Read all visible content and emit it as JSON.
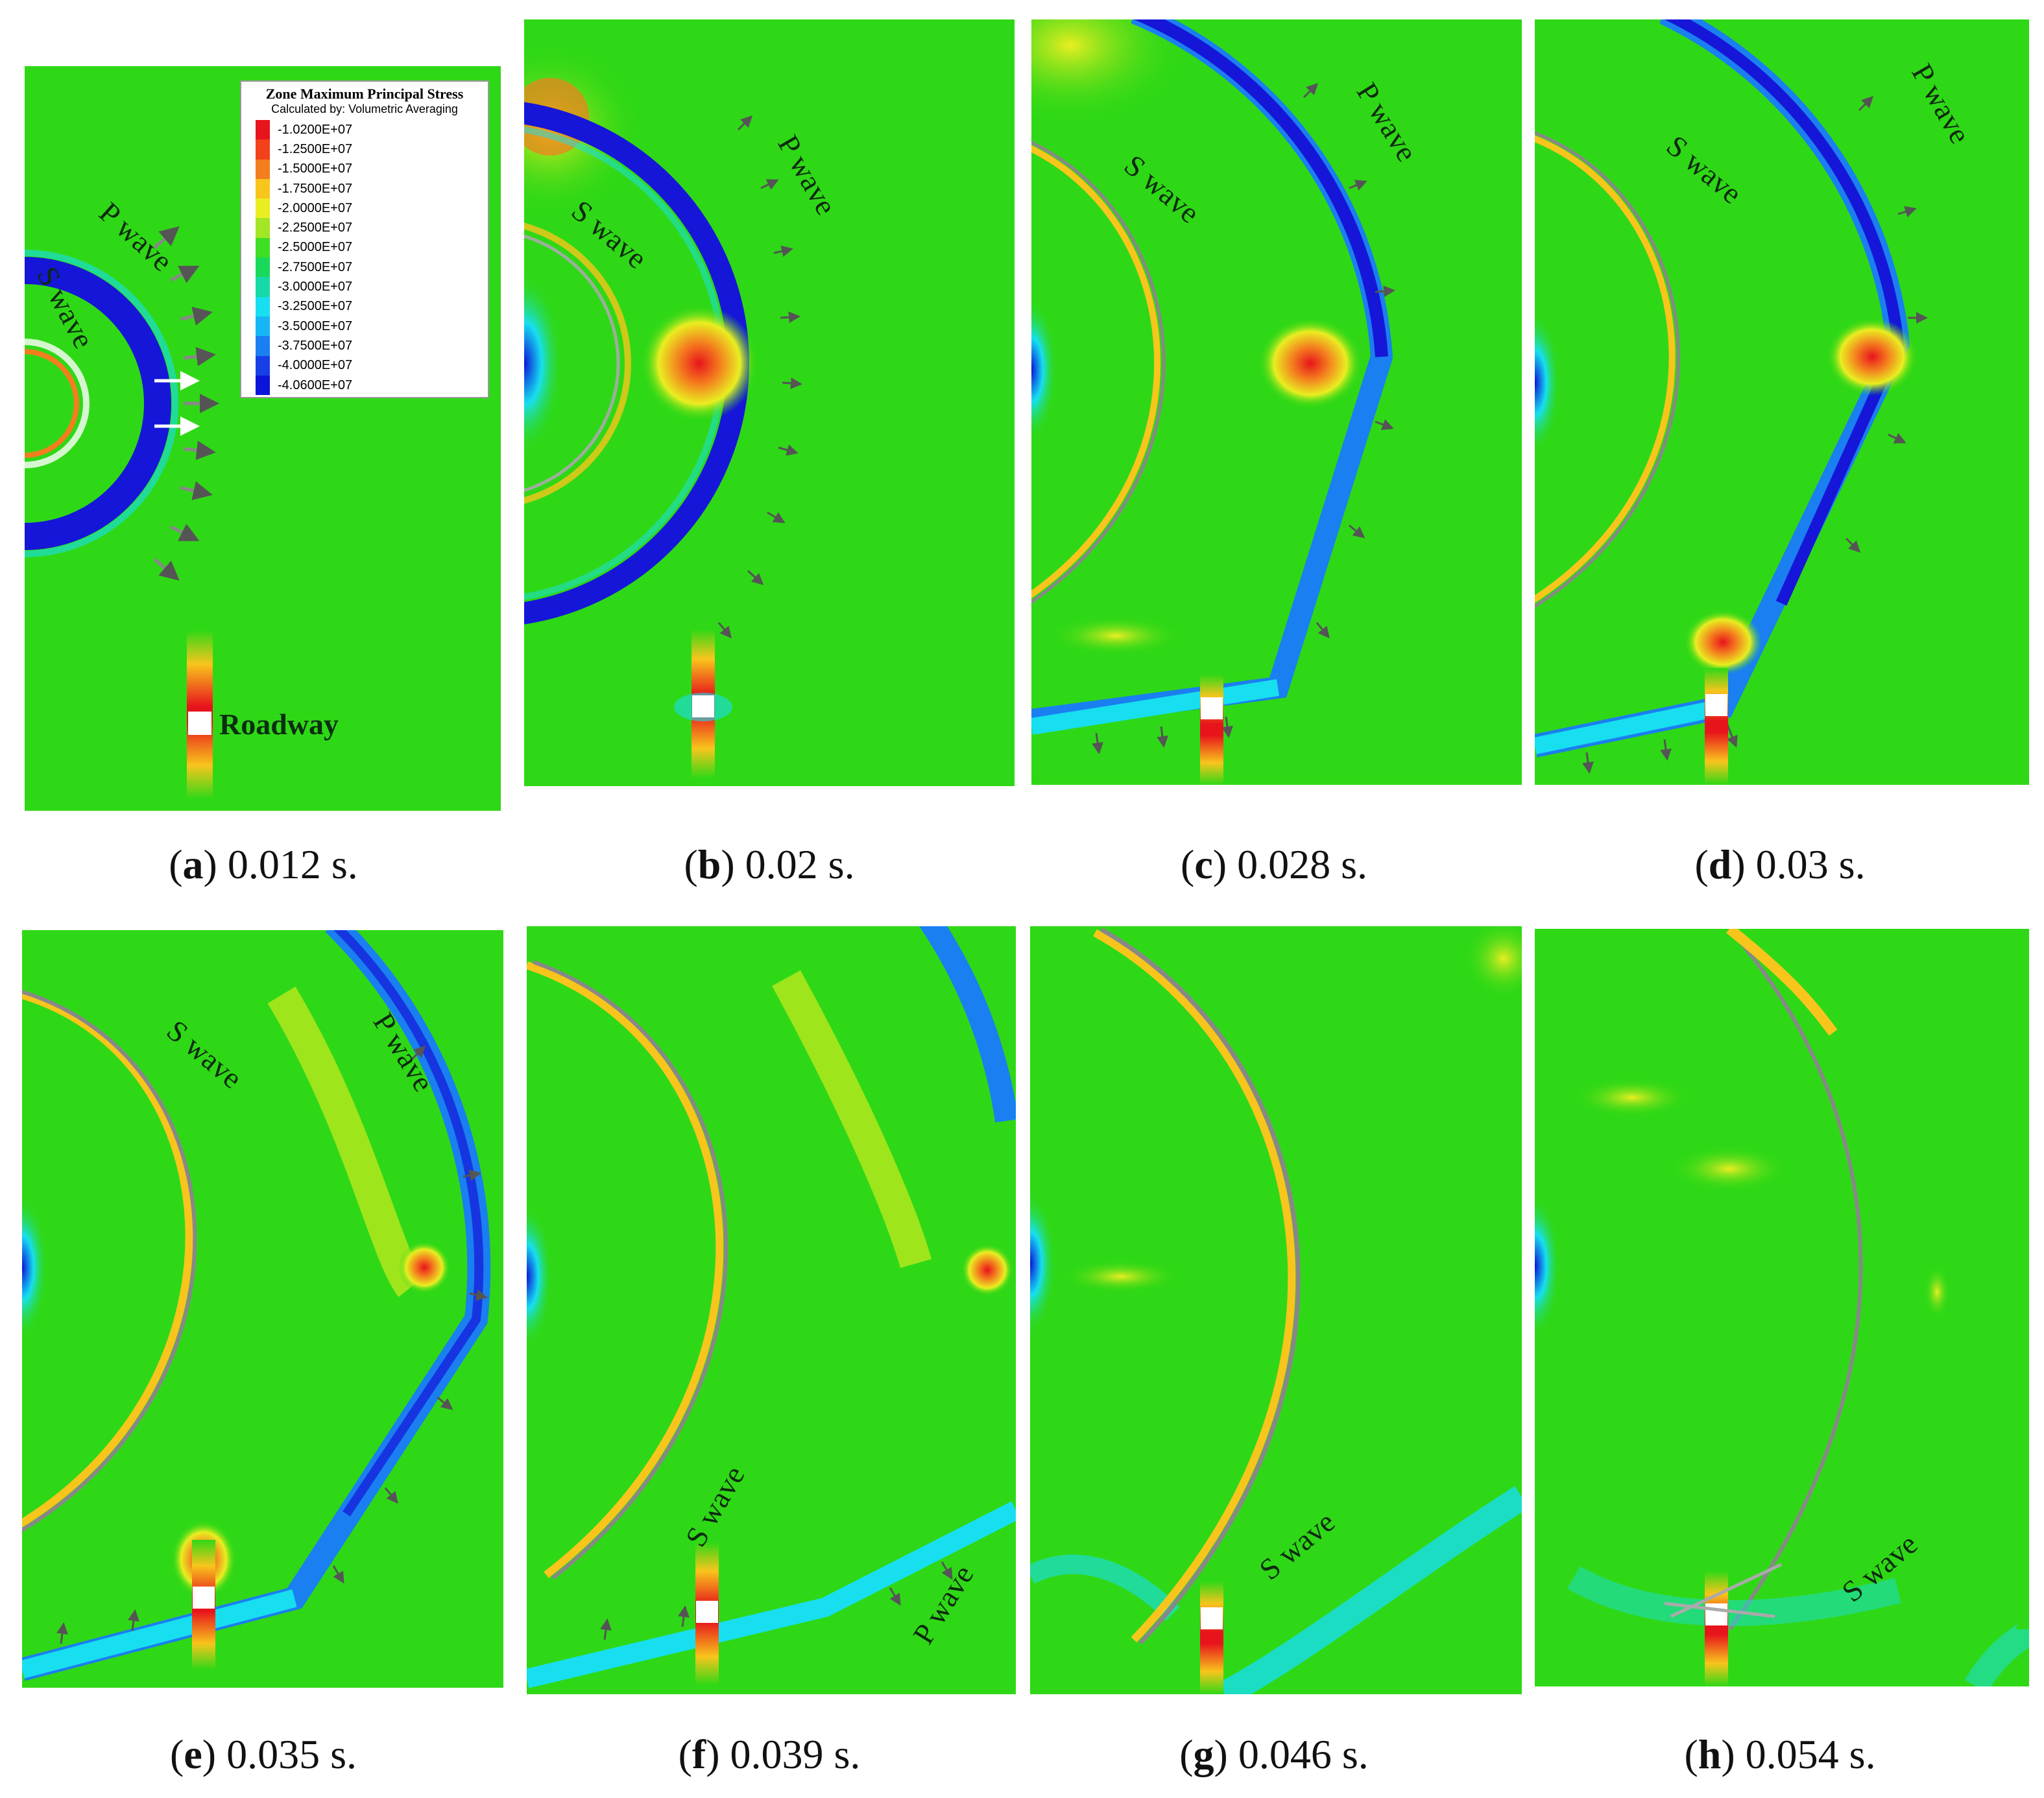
{
  "legend": {
    "title": "Zone Maximum Principal Stress",
    "subtitle": "Calculated by: Volumetric Averaging",
    "entries": [
      {
        "label": "-1.0200E+07",
        "color": "#e8141c"
      },
      {
        "label": "-1.2500E+07",
        "color": "#f2411b"
      },
      {
        "label": "-1.5000E+07",
        "color": "#f47d1e"
      },
      {
        "label": "-1.7500E+07",
        "color": "#f8c51c"
      },
      {
        "label": "-2.0000E+07",
        "color": "#e9ee21"
      },
      {
        "label": "-2.2500E+07",
        "color": "#a3e625"
      },
      {
        "label": "-2.5000E+07",
        "color": "#3ede25"
      },
      {
        "label": "-2.7500E+07",
        "color": "#19d95a"
      },
      {
        "label": "-3.0000E+07",
        "color": "#17d9a7"
      },
      {
        "label": "-3.2500E+07",
        "color": "#17dff0"
      },
      {
        "label": "-3.5000E+07",
        "color": "#16b5f4"
      },
      {
        "label": "-3.7500E+07",
        "color": "#1a7ff0"
      },
      {
        "label": "-4.0000E+07",
        "color": "#173fe6"
      },
      {
        "label": "-4.0600E+07",
        "color": "#0b14d8"
      }
    ]
  },
  "labels": {
    "p_wave": "P wave",
    "s_wave": "S wave",
    "roadway": "Roadway"
  },
  "colors": {
    "background_field": "#2fd816",
    "ring_blue": "#1616d8",
    "hot_red": "#e8281c"
  },
  "panels": [
    {
      "letter": "a",
      "time": "0.012 s."
    },
    {
      "letter": "b",
      "time": "0.02 s."
    },
    {
      "letter": "c",
      "time": "0.028 s."
    },
    {
      "letter": "d",
      "time": "0.03 s."
    },
    {
      "letter": "e",
      "time": "0.035 s."
    },
    {
      "letter": "f",
      "time": "0.039 s."
    },
    {
      "letter": "g",
      "time": "0.046 s."
    },
    {
      "letter": "h",
      "time": "0.054 s."
    }
  ]
}
